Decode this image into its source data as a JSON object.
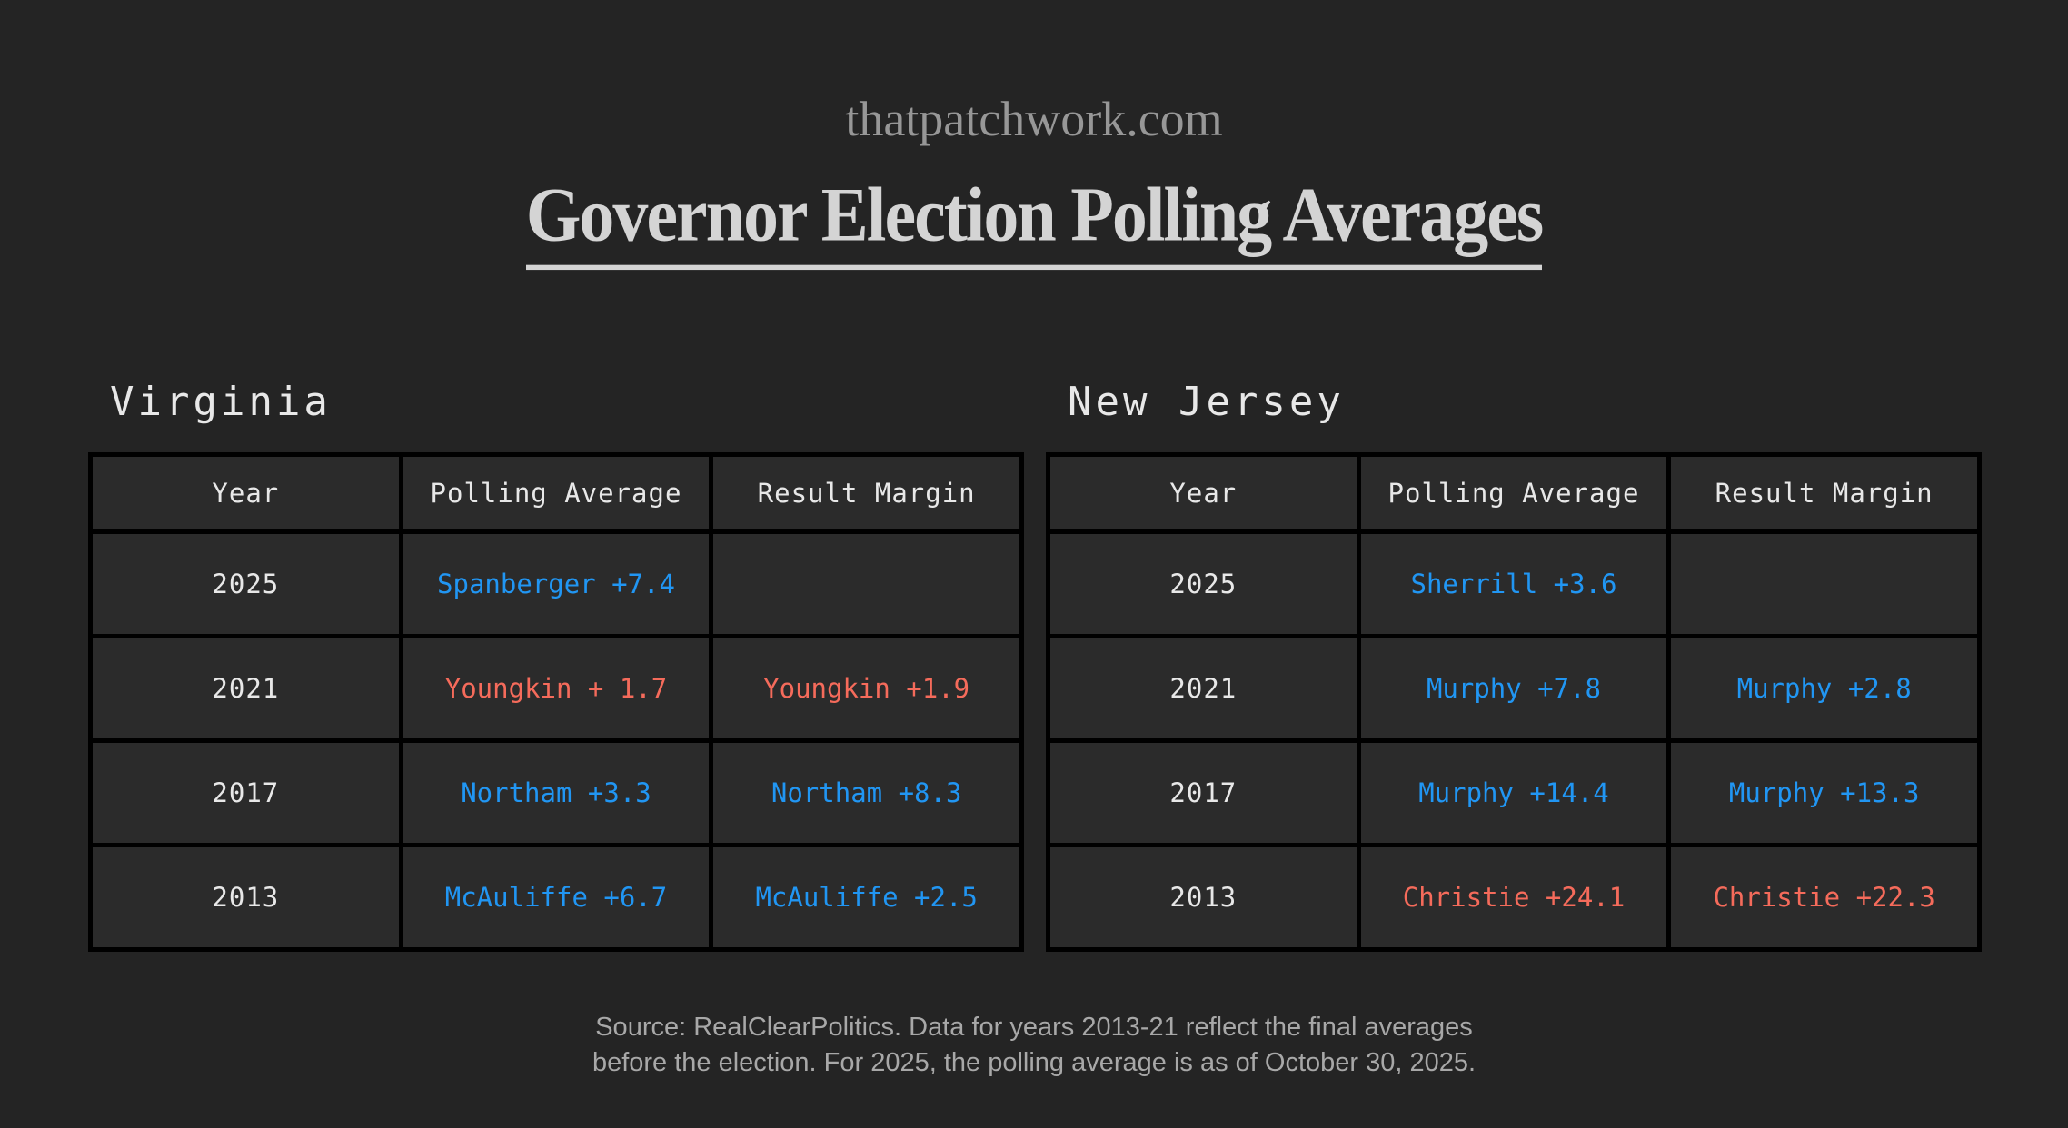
{
  "header": {
    "site": "thatpatchwork.com",
    "title": "Governor Election Polling Averages"
  },
  "footer": {
    "line1": "Source: RealClearPolitics. Data for years 2013-21 reflect the final averages",
    "line2": "before the election. For 2025, the polling average is as of October 30, 2025."
  },
  "colors": {
    "background": "#242424",
    "cell_background": "#2b2b2b",
    "table_border": "#000000",
    "text_primary": "#e8e8e8",
    "text_muted": "#a8a8a8",
    "title_color": "#d4d4d4",
    "site_color": "#979797",
    "dem_blue": "#2196f3",
    "rep_red": "#f56b5b"
  },
  "tables": [
    {
      "state": "Virginia",
      "columns": [
        "Year",
        "Polling Average",
        "Result Margin"
      ],
      "rows": [
        {
          "year": "2025",
          "polling": "Spanberger +7.4",
          "polling_party": "dem",
          "result": "",
          "result_party": ""
        },
        {
          "year": "2021",
          "polling": "Youngkin + 1.7",
          "polling_party": "rep",
          "result": "Youngkin +1.9",
          "result_party": "rep"
        },
        {
          "year": "2017",
          "polling": "Northam +3.3",
          "polling_party": "dem",
          "result": "Northam +8.3",
          "result_party": "dem"
        },
        {
          "year": "2013",
          "polling": "McAuliffe +6.7",
          "polling_party": "dem",
          "result": "McAuliffe +2.5",
          "result_party": "dem"
        }
      ]
    },
    {
      "state": "New Jersey",
      "columns": [
        "Year",
        "Polling Average",
        "Result Margin"
      ],
      "rows": [
        {
          "year": "2025",
          "polling": "Sherrill +3.6",
          "polling_party": "dem",
          "result": "",
          "result_party": ""
        },
        {
          "year": "2021",
          "polling": "Murphy +7.8",
          "polling_party": "dem",
          "result": "Murphy +2.8",
          "result_party": "dem"
        },
        {
          "year": "2017",
          "polling": "Murphy +14.4",
          "polling_party": "dem",
          "result": "Murphy +13.3",
          "result_party": "dem"
        },
        {
          "year": "2013",
          "polling": "Christie +24.1",
          "polling_party": "rep",
          "result": "Christie +22.3",
          "result_party": "rep"
        }
      ]
    }
  ],
  "chart_data": [
    {
      "type": "table",
      "title": "Virginia",
      "columns": [
        "Year",
        "Polling Average",
        "Result Margin"
      ],
      "rows": [
        [
          "2025",
          "Spanberger +7.4",
          ""
        ],
        [
          "2021",
          "Youngkin + 1.7",
          "Youngkin +1.9"
        ],
        [
          "2017",
          "Northam +3.3",
          "Northam +8.3"
        ],
        [
          "2013",
          "McAuliffe +6.7",
          "McAuliffe +2.5"
        ]
      ]
    },
    {
      "type": "table",
      "title": "New Jersey",
      "columns": [
        "Year",
        "Polling Average",
        "Result Margin"
      ],
      "rows": [
        [
          "2025",
          "Sherrill +3.6",
          ""
        ],
        [
          "2021",
          "Murphy +7.8",
          "Murphy +2.8"
        ],
        [
          "2017",
          "Murphy +14.4",
          "Murphy +13.3"
        ],
        [
          "2013",
          "Christie +24.1",
          "Christie +22.3"
        ]
      ]
    }
  ]
}
